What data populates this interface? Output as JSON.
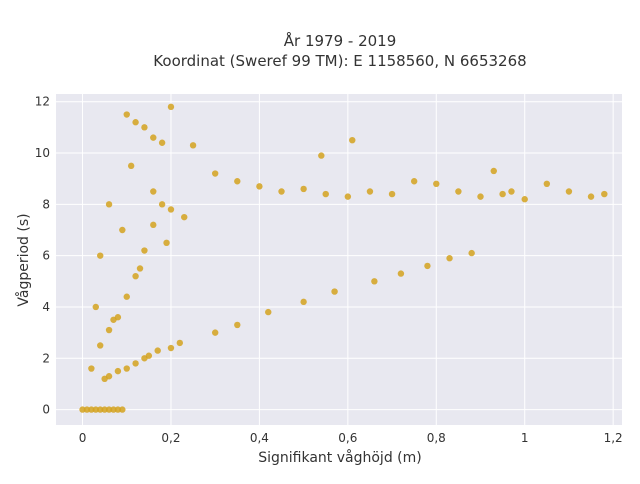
{
  "chart_data": {
    "type": "scatter",
    "title_line1": "År 1979 - 2019",
    "title_line2": "Koordinat (Sweref 99 TM): E 1158560, N 6653268",
    "xlabel": "Signifikant våghöjd (m)",
    "ylabel": "Vågperiod (s)",
    "xlim": [
      -0.06,
      1.22
    ],
    "ylim": [
      -0.6,
      12.3
    ],
    "x_ticks": [
      0,
      0.2,
      0.4,
      0.6,
      0.8,
      1,
      1.2
    ],
    "x_tick_labels": [
      "0",
      "0,2",
      "0,4",
      "0,6",
      "0,8",
      "1",
      "1,2"
    ],
    "y_ticks": [
      0,
      2,
      4,
      6,
      8,
      10,
      12
    ],
    "y_tick_labels": [
      "0",
      "2",
      "4",
      "6",
      "8",
      "10",
      "12"
    ],
    "grid": true,
    "legend": "none",
    "colors": {
      "marker": "#d4a21f",
      "plot_bg": "#e8e8f0",
      "grid": "#ffffff",
      "text": "#333333"
    },
    "series": [
      {
        "x": [
          0.0,
          0.01,
          0.02,
          0.03,
          0.04,
          0.05,
          0.06,
          0.07,
          0.08,
          0.09,
          0.05,
          0.06,
          0.08,
          0.1,
          0.12,
          0.14,
          0.15,
          0.17,
          0.2,
          0.22,
          0.1,
          0.12,
          0.14,
          0.16,
          0.18,
          0.2,
          0.25,
          0.3,
          0.35,
          0.4,
          0.45,
          0.5,
          0.55,
          0.6,
          0.65,
          0.7,
          0.75,
          0.8,
          0.85,
          0.9,
          0.95,
          1.0,
          1.05,
          1.1,
          1.15,
          1.18,
          0.54,
          0.61,
          0.93,
          0.97,
          0.3,
          0.35,
          0.42,
          0.5,
          0.57,
          0.66,
          0.72,
          0.78,
          0.83,
          0.88,
          0.03,
          0.04,
          0.06,
          0.07,
          0.09,
          0.11,
          0.13,
          0.16,
          0.19,
          0.23,
          0.02,
          0.04,
          0.06,
          0.08,
          0.1,
          0.12,
          0.14,
          0.16,
          0.18,
          0.2
        ],
        "y": [
          0.0,
          0.0,
          0.0,
          0.0,
          0.0,
          0.0,
          0.0,
          0.0,
          0.0,
          0.0,
          1.2,
          1.3,
          1.5,
          1.6,
          1.8,
          2.0,
          2.1,
          2.3,
          2.4,
          2.6,
          11.5,
          11.2,
          11.0,
          10.6,
          10.4,
          11.8,
          10.3,
          9.2,
          8.9,
          8.7,
          8.5,
          8.6,
          8.4,
          8.3,
          8.5,
          8.4,
          8.9,
          8.8,
          8.5,
          8.3,
          8.4,
          8.2,
          8.8,
          8.5,
          8.3,
          8.4,
          9.9,
          10.5,
          9.3,
          8.5,
          3.0,
          3.3,
          3.8,
          4.2,
          4.6,
          5.0,
          5.3,
          5.6,
          5.9,
          6.1,
          4.0,
          6.0,
          8.0,
          3.5,
          7.0,
          9.5,
          5.5,
          8.5,
          6.5,
          7.5,
          1.6,
          2.5,
          3.1,
          3.6,
          4.4,
          5.2,
          6.2,
          7.2,
          8.0,
          7.8
        ]
      }
    ]
  }
}
